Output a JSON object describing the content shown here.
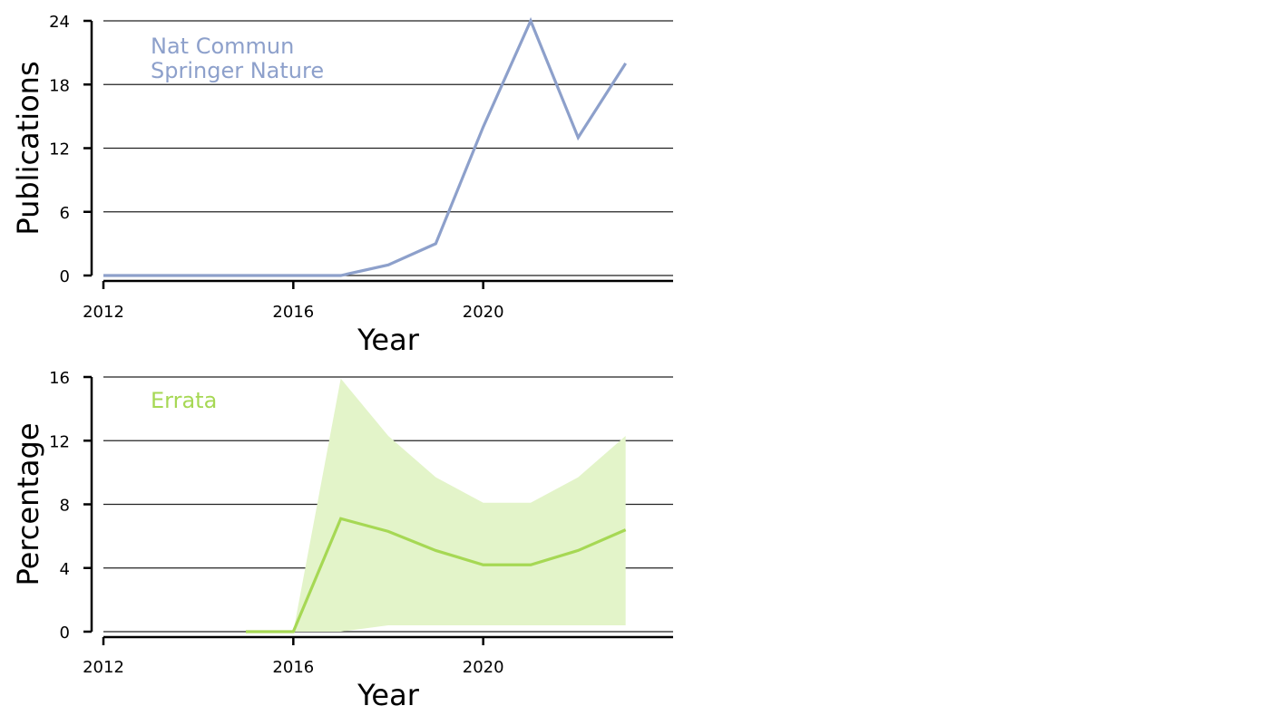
{
  "chart_data": [
    {
      "type": "line",
      "title": "",
      "xlabel": "Year",
      "ylabel": "Publications",
      "xlim": [
        2012,
        2024
      ],
      "ylim": [
        0,
        24
      ],
      "xticks": [
        2012,
        2016,
        2020
      ],
      "yticks": [
        0,
        6,
        12,
        18,
        24
      ],
      "grid": "horizontal",
      "annotations": [
        "Nat Commun",
        "Springer Nature"
      ],
      "colors": {
        "series": "#8DA0CB"
      },
      "series": [
        {
          "x": [
            2012,
            2013,
            2014,
            2015,
            2016,
            2017,
            2018,
            2019,
            2020,
            2021,
            2022,
            2023
          ],
          "values": [
            0,
            0,
            0,
            0,
            0,
            0,
            1,
            3,
            14,
            24,
            13,
            20
          ]
        }
      ]
    },
    {
      "type": "area",
      "title": "",
      "xlabel": "Year",
      "ylabel": "Percentage",
      "xlim": [
        2012,
        2024
      ],
      "ylim": [
        0,
        16
      ],
      "xticks": [
        2012,
        2016,
        2020
      ],
      "yticks": [
        0,
        4,
        8,
        12,
        16
      ],
      "grid": "horizontal",
      "annotations": [
        "Errata"
      ],
      "colors": {
        "series": "#A6D854",
        "band": "#E3F4C9"
      },
      "series": [
        {
          "x": [
            2015,
            2016,
            2017,
            2018,
            2019,
            2020,
            2021,
            2022,
            2023
          ],
          "values": [
            0,
            0,
            7.1,
            6.3,
            5.1,
            4.2,
            4.2,
            5.1,
            6.4
          ],
          "band": {
            "x": [
              2016,
              2017,
              2018,
              2019,
              2020,
              2021,
              2022,
              2023
            ],
            "lower": [
              0,
              0,
              0.4,
              0.4,
              0.4,
              0.4,
              0.4,
              0.4
            ],
            "upper": [
              0,
              15.9,
              12.3,
              9.7,
              8.1,
              8.1,
              9.7,
              12.3
            ]
          }
        }
      ]
    }
  ]
}
